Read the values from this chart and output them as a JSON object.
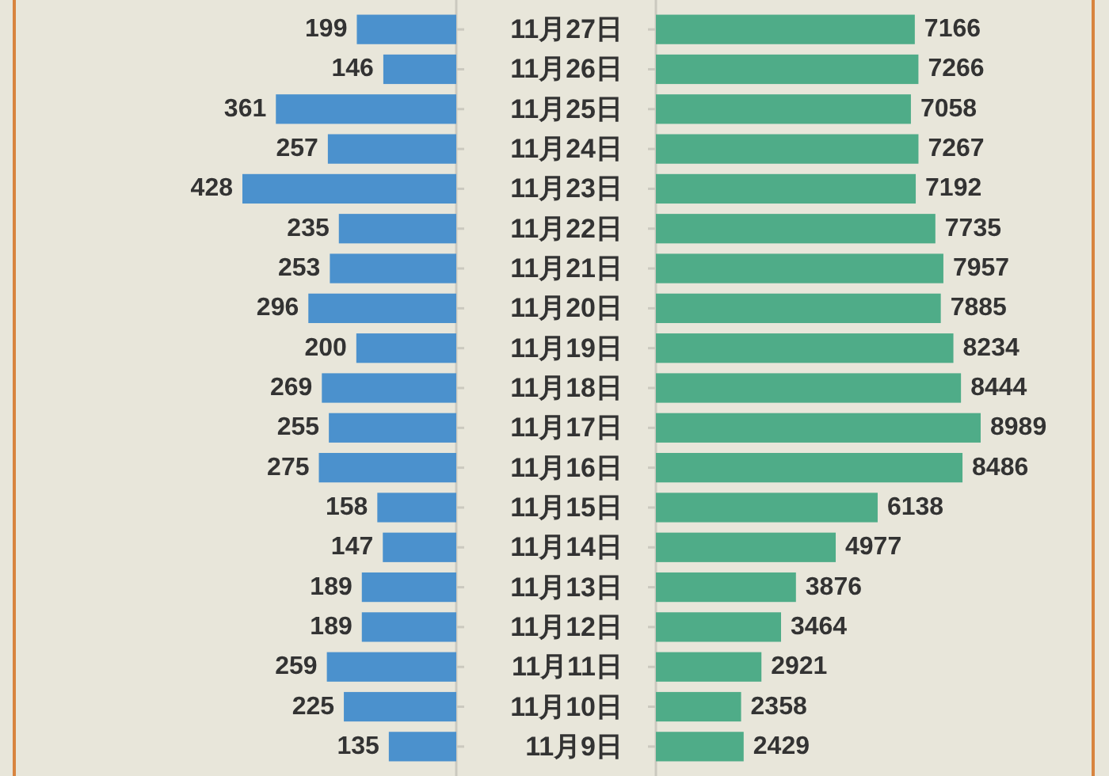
{
  "chart_data": [
    {
      "type": "bar",
      "orientation": "horizontal",
      "categories": [
        "11月27日",
        "11月26日",
        "11月25日",
        "11月24日",
        "11月23日",
        "11月22日",
        "11月21日",
        "11月20日",
        "11月19日",
        "11月18日",
        "11月17日",
        "11月16日",
        "11月15日",
        "11月14日",
        "11月13日",
        "11月12日",
        "11月11日",
        "11月10日",
        "11月9日"
      ],
      "color": "#4b91cd",
      "values": [
        199,
        146,
        361,
        257,
        428,
        235,
        253,
        296,
        200,
        269,
        255,
        275,
        158,
        147,
        189,
        189,
        259,
        225,
        135
      ],
      "data_labels": true,
      "tick_labels": false
    },
    {
      "type": "bar",
      "orientation": "horizontal",
      "categories": [
        "11月27日",
        "11月26日",
        "11月25日",
        "11月24日",
        "11月23日",
        "11月22日",
        "11月21日",
        "11月20日",
        "11月19日",
        "11月18日",
        "11月17日",
        "11月16日",
        "11月15日",
        "11月14日",
        "11月13日",
        "11月12日",
        "11月11日",
        "11月10日",
        "11月9日"
      ],
      "color": "#4fac88",
      "values": [
        7166,
        7266,
        7058,
        7267,
        7192,
        7735,
        7957,
        7885,
        8234,
        8444,
        8989,
        8486,
        6138,
        4977,
        3876,
        3464,
        2921,
        2358,
        2429
      ],
      "data_labels": true,
      "tick_labels": "y"
    }
  ]
}
